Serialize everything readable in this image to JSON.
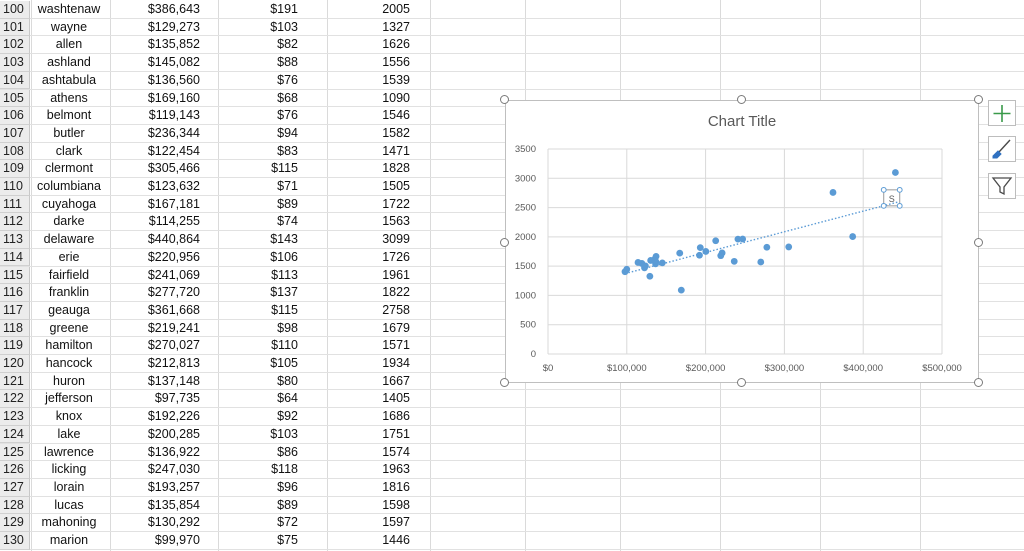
{
  "rows": [
    {
      "row": "100",
      "county": "washtenaw",
      "income": "$386,643",
      "rent": "$191",
      "value": "2005"
    },
    {
      "row": "101",
      "county": "wayne",
      "income": "$129,273",
      "rent": "$103",
      "value": "1327"
    },
    {
      "row": "102",
      "county": "allen",
      "income": "$135,852",
      "rent": "$82",
      "value": "1626"
    },
    {
      "row": "103",
      "county": "ashland",
      "income": "$145,082",
      "rent": "$88",
      "value": "1556"
    },
    {
      "row": "104",
      "county": "ashtabula",
      "income": "$136,560",
      "rent": "$76",
      "value": "1539"
    },
    {
      "row": "105",
      "county": "athens",
      "income": "$169,160",
      "rent": "$68",
      "value": "1090"
    },
    {
      "row": "106",
      "county": "belmont",
      "income": "$119,143",
      "rent": "$76",
      "value": "1546"
    },
    {
      "row": "107",
      "county": "butler",
      "income": "$236,344",
      "rent": "$94",
      "value": "1582"
    },
    {
      "row": "108",
      "county": "clark",
      "income": "$122,454",
      "rent": "$83",
      "value": "1471"
    },
    {
      "row": "109",
      "county": "clermont",
      "income": "$305,466",
      "rent": "$115",
      "value": "1828"
    },
    {
      "row": "110",
      "county": "columbiana",
      "income": "$123,632",
      "rent": "$71",
      "value": "1505"
    },
    {
      "row": "111",
      "county": "cuyahoga",
      "income": "$167,181",
      "rent": "$89",
      "value": "1722"
    },
    {
      "row": "112",
      "county": "darke",
      "income": "$114,255",
      "rent": "$74",
      "value": "1563"
    },
    {
      "row": "113",
      "county": "delaware",
      "income": "$440,864",
      "rent": "$143",
      "value": "3099"
    },
    {
      "row": "114",
      "county": "erie",
      "income": "$220,956",
      "rent": "$106",
      "value": "1726"
    },
    {
      "row": "115",
      "county": "fairfield",
      "income": "$241,069",
      "rent": "$113",
      "value": "1961"
    },
    {
      "row": "116",
      "county": "franklin",
      "income": "$277,720",
      "rent": "$137",
      "value": "1822"
    },
    {
      "row": "117",
      "county": "geauga",
      "income": "$361,668",
      "rent": "$115",
      "value": "2758"
    },
    {
      "row": "118",
      "county": "greene",
      "income": "$219,241",
      "rent": "$98",
      "value": "1679"
    },
    {
      "row": "119",
      "county": "hamilton",
      "income": "$270,027",
      "rent": "$110",
      "value": "1571"
    },
    {
      "row": "120",
      "county": "hancock",
      "income": "$212,813",
      "rent": "$105",
      "value": "1934"
    },
    {
      "row": "121",
      "county": "huron",
      "income": "$137,148",
      "rent": "$80",
      "value": "1667"
    },
    {
      "row": "122",
      "county": "jefferson",
      "income": "$97,735",
      "rent": "$64",
      "value": "1405"
    },
    {
      "row": "123",
      "county": "knox",
      "income": "$192,226",
      "rent": "$92",
      "value": "1686"
    },
    {
      "row": "124",
      "county": "lake",
      "income": "$200,285",
      "rent": "$103",
      "value": "1751"
    },
    {
      "row": "125",
      "county": "lawrence",
      "income": "$136,922",
      "rent": "$86",
      "value": "1574"
    },
    {
      "row": "126",
      "county": "licking",
      "income": "$247,030",
      "rent": "$118",
      "value": "1963"
    },
    {
      "row": "127",
      "county": "lorain",
      "income": "$193,257",
      "rent": "$96",
      "value": "1816"
    },
    {
      "row": "128",
      "county": "lucas",
      "income": "$135,854",
      "rent": "$89",
      "value": "1598"
    },
    {
      "row": "129",
      "county": "mahoning",
      "income": "$130,292",
      "rent": "$72",
      "value": "1597"
    },
    {
      "row": "130",
      "county": "marion",
      "income": "$99,970",
      "rent": "$75",
      "value": "1446"
    }
  ],
  "chart_data": {
    "type": "scatter",
    "title": "Chart Title",
    "xlim": [
      0,
      500000
    ],
    "ylim": [
      0,
      3500
    ],
    "x_ticks": [
      0,
      100000,
      200000,
      300000,
      400000,
      500000
    ],
    "x_tick_labels": [
      "$0",
      "$100,000",
      "$200,000",
      "$300,000",
      "$400,000",
      "$500,000"
    ],
    "y_ticks": [
      0,
      500,
      1000,
      1500,
      2000,
      2500,
      3000,
      3500
    ],
    "y_tick_labels": [
      "0",
      "500",
      "1000",
      "1500",
      "2000",
      "2500",
      "3000",
      "3500"
    ],
    "grid": true,
    "trendline": "linear",
    "selected_point_label": "S",
    "series": [
      {
        "color": "#5b9bd5",
        "points": [
          [
            386643,
            2005
          ],
          [
            129273,
            1327
          ],
          [
            135852,
            1626
          ],
          [
            145082,
            1556
          ],
          [
            136560,
            1539
          ],
          [
            169160,
            1090
          ],
          [
            119143,
            1546
          ],
          [
            236344,
            1582
          ],
          [
            122454,
            1471
          ],
          [
            305466,
            1828
          ],
          [
            123632,
            1505
          ],
          [
            167181,
            1722
          ],
          [
            114255,
            1563
          ],
          [
            440864,
            3099
          ],
          [
            220956,
            1726
          ],
          [
            241069,
            1961
          ],
          [
            277720,
            1822
          ],
          [
            361668,
            2758
          ],
          [
            219241,
            1679
          ],
          [
            270027,
            1571
          ],
          [
            212813,
            1934
          ],
          [
            137148,
            1667
          ],
          [
            97735,
            1405
          ],
          [
            192226,
            1686
          ],
          [
            200285,
            1751
          ],
          [
            136922,
            1574
          ],
          [
            247030,
            1963
          ],
          [
            193257,
            1816
          ],
          [
            135854,
            1598
          ],
          [
            130292,
            1597
          ],
          [
            99970,
            1446
          ]
        ]
      }
    ],
    "trend_color": "#5b9bd5",
    "axis_label_color": "#595959",
    "grid_color": "#d9d9d9"
  },
  "side_buttons": [
    {
      "name": "chart-elements-button",
      "icon": "plus-icon"
    },
    {
      "name": "chart-styles-button",
      "icon": "paintbrush-icon"
    },
    {
      "name": "chart-filters-button",
      "icon": "funnel-icon"
    }
  ]
}
